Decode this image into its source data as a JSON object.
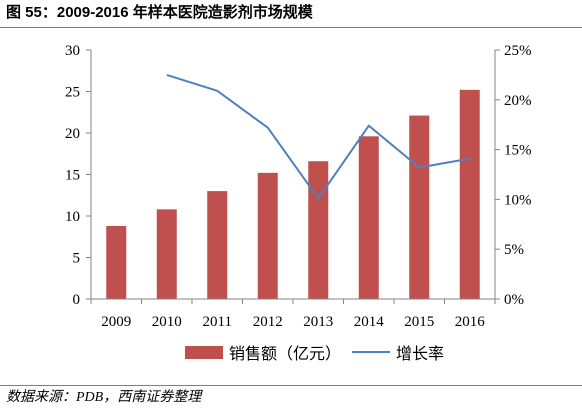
{
  "source": "数据来源：PDB，西南证券整理",
  "colors": {
    "bar": "#C0504D",
    "line": "#4F81BD",
    "axis": "#868686",
    "text": "#000000"
  },
  "chart_data": {
    "type": "bar",
    "title": "图 55：2009-2016 年样本医院造影剂市场规模",
    "categories": [
      "2009",
      "2010",
      "2011",
      "2012",
      "2013",
      "2014",
      "2015",
      "2016"
    ],
    "series": [
      {
        "name": "销售额（亿元）",
        "type": "bar",
        "axis": "left",
        "values": [
          8.8,
          10.8,
          13.0,
          15.2,
          16.6,
          19.6,
          22.1,
          25.2
        ]
      },
      {
        "name": "增长率",
        "type": "line",
        "axis": "right",
        "values": [
          null,
          22.5,
          20.9,
          17.2,
          10.1,
          17.4,
          13.2,
          14.1
        ]
      }
    ],
    "xlabel": "",
    "ylabel": "",
    "y2label": "",
    "ylim": [
      0,
      30
    ],
    "yticks": [
      "0",
      "5",
      "10",
      "15",
      "20",
      "25",
      "30"
    ],
    "y2lim": [
      0,
      25
    ],
    "y2ticks": [
      "0%",
      "5%",
      "10%",
      "15%",
      "20%",
      "25%"
    ],
    "grid": false,
    "legend": "bottom"
  }
}
